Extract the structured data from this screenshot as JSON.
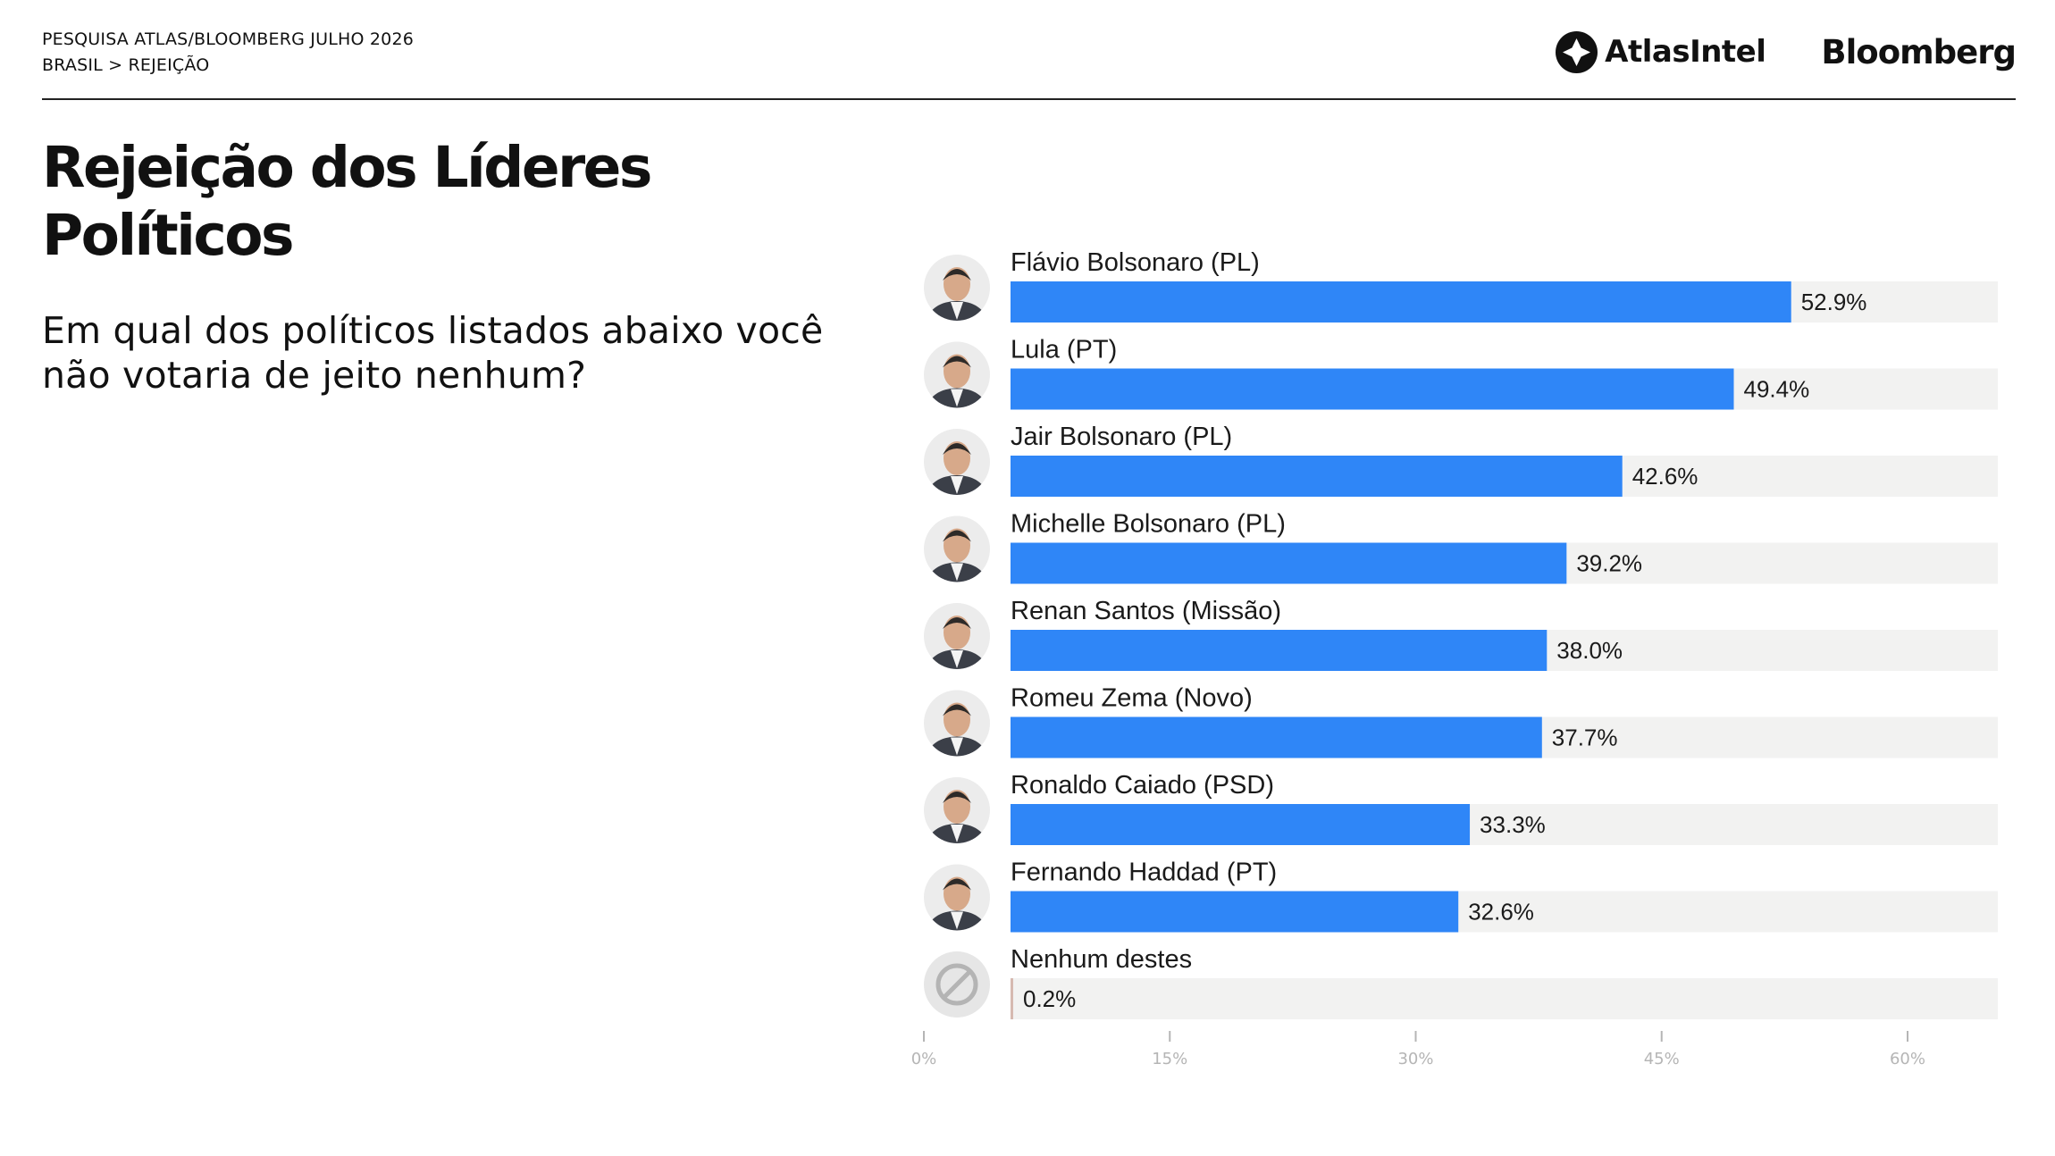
{
  "header": {
    "line1": "PESQUISA ATLAS/BLOOMBERG JULHO 2026",
    "line2": "BRASIL > REJEIÇÃO"
  },
  "logos": {
    "atlas": "AtlasIntel",
    "bloomberg": "Bloomberg"
  },
  "title": "Rejeição dos Líderes Políticos",
  "subtitle": "Em qual dos políticos listados abaixo você não votaria de jeito nenhum?",
  "colors": {
    "bar": "#2f86f7",
    "track": "#f2f2f1",
    "none_bar": "#d6b9b0",
    "tick": "#b5b5b5"
  },
  "chart_data": {
    "type": "bar",
    "orientation": "horizontal",
    "categories": [
      "Flávio Bolsonaro (PL)",
      "Lula (PT)",
      "Jair Bolsonaro (PL)",
      "Michelle Bolsonaro (PL)",
      "Renan Santos (Missão)",
      "Romeu Zema (Novo)",
      "Ronaldo Caiado (PSD)",
      "Fernando Haddad (PT)",
      "Nenhum destes"
    ],
    "values": [
      52.9,
      49.4,
      42.6,
      39.2,
      38.0,
      37.7,
      33.3,
      32.6,
      0.2
    ],
    "value_labels": [
      "52.9%",
      "49.4%",
      "42.6%",
      "39.2%",
      "38.0%",
      "37.7%",
      "33.3%",
      "32.6%",
      "0.2%"
    ],
    "icons": [
      "avatar",
      "avatar",
      "avatar",
      "avatar",
      "avatar",
      "avatar",
      "avatar",
      "avatar",
      "prohibited-icon"
    ],
    "xlim": [
      0,
      60
    ],
    "ticks": [
      0,
      15,
      30,
      45,
      60
    ],
    "tick_labels": [
      "0%",
      "15%",
      "30%",
      "45%",
      "60%"
    ],
    "grid": false,
    "title": "",
    "xlabel": "",
    "ylabel": ""
  }
}
